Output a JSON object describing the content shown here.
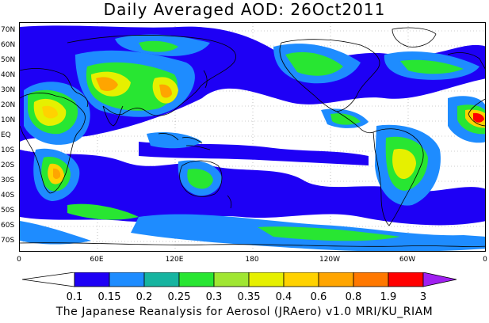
{
  "title": "Daily Averaged AOD: 26Oct2011",
  "credit": "The Japanese Reanalysis for Aerosol (JRAero) v1.0 MRI/KU_RIAM",
  "map": {
    "lat_labels": [
      "70N",
      "60N",
      "50N",
      "40N",
      "30N",
      "20N",
      "10N",
      "EQ",
      "10S",
      "20S",
      "30S",
      "40S",
      "50S",
      "60S",
      "70S"
    ],
    "lon_labels": [
      "0",
      "60E",
      "120E",
      "180",
      "120W",
      "60W",
      "0"
    ]
  },
  "colorbar": {
    "labels": [
      "0.1",
      "0.15",
      "0.2",
      "0.25",
      "0.3",
      "0.35",
      "0.4",
      "0.6",
      "0.8",
      "1.9",
      "3"
    ],
    "colors": [
      "#ffffff",
      "#1e00f5",
      "#1e8cff",
      "#16b4a0",
      "#28e632",
      "#a0e632",
      "#e6f000",
      "#ffd200",
      "#ffa500",
      "#ff7800",
      "#ff0000",
      "#a020f0"
    ]
  }
}
